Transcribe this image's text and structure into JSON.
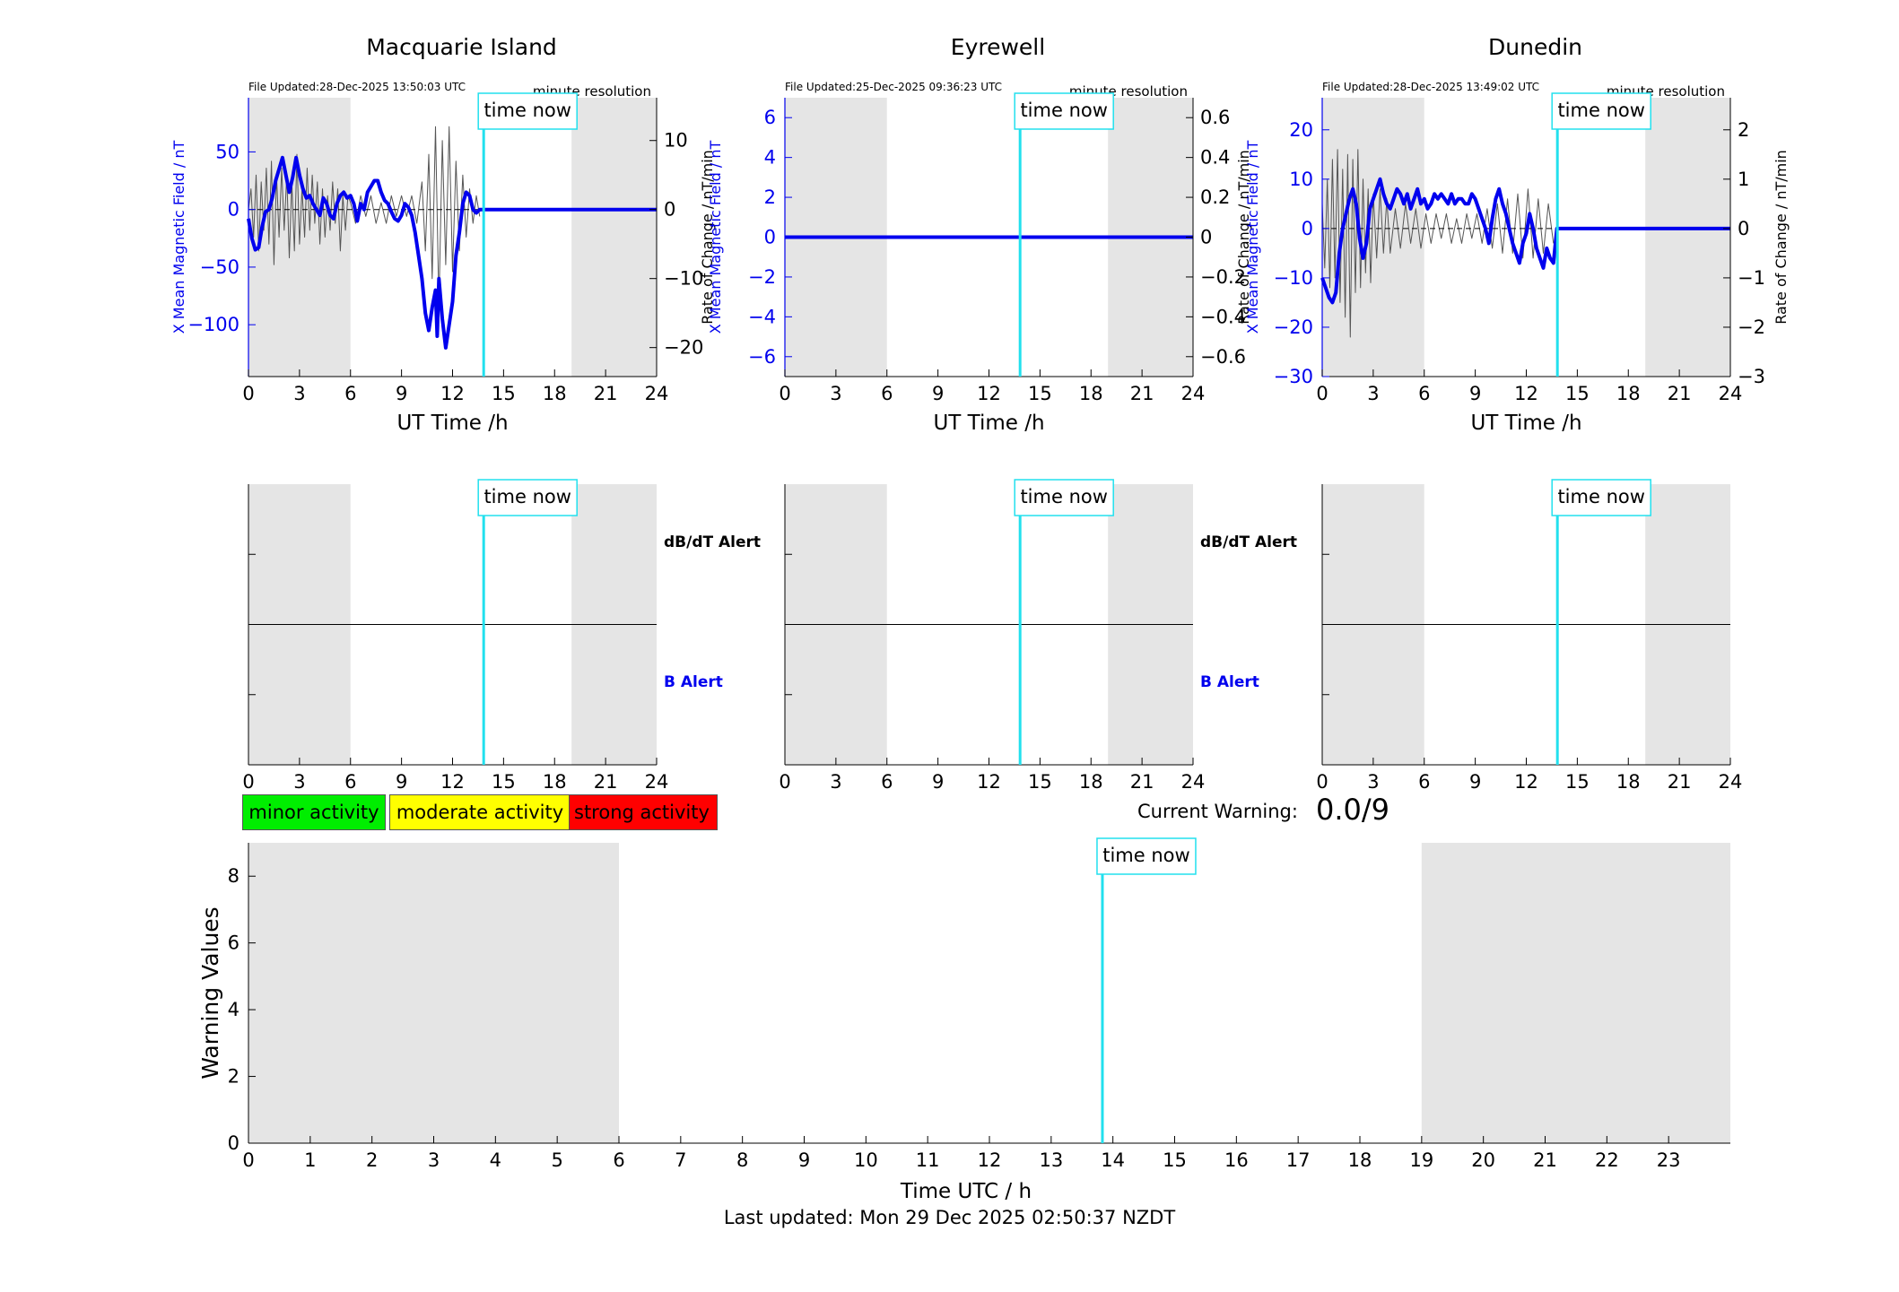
{
  "colors": {
    "shade": "#e5e5e5",
    "field": "#0000ee",
    "rate": "#555555",
    "now_line": "#22e0ee",
    "minor": "#00ee00",
    "moderate": "#ffff00",
    "strong": "#ff0000"
  },
  "time_now_label": "time now",
  "x_label": "UT Time /h",
  "left_y_label": "X Mean Magnetic Field / nT",
  "right_y_label": "Rate of Change / nT/min",
  "resolution_label": "minute resolution",
  "alert_labels": {
    "dbdt": "dB/dT Alert",
    "b": "B Alert"
  },
  "activity_legend": {
    "minor": "minor activity",
    "moderate": "moderate activity",
    "strong": "strong activity"
  },
  "current_warning": {
    "label": "Current Warning:",
    "value": "0.0/9"
  },
  "last_updated": "Last updated: Mon 29 Dec 2025 02:50:37 NZDT",
  "chart_data": [
    {
      "type": "line",
      "title": "Macquarie Island",
      "file_updated": "File Updated:28-Dec-2025 13:50:03 UTC",
      "xlim": [
        0,
        24
      ],
      "xticks": [
        0,
        3,
        6,
        9,
        12,
        15,
        18,
        21,
        24
      ],
      "ylim": [
        -145,
        97
      ],
      "yticks": [
        -100,
        -50,
        0,
        50
      ],
      "y2lim": [
        -24.2,
        16.2
      ],
      "y2ticks": [
        -20,
        -10,
        0,
        10
      ],
      "night_shading_h": [
        [
          0,
          6
        ],
        [
          19,
          24
        ]
      ],
      "time_now_h": 13.83,
      "series": [
        {
          "name": "X Mean Magnetic Field / nT",
          "axis": "left",
          "x": [
            0,
            0.2,
            0.4,
            0.6,
            0.8,
            1.0,
            1.2,
            1.4,
            1.6,
            1.8,
            2.0,
            2.2,
            2.4,
            2.6,
            2.8,
            3.0,
            3.2,
            3.4,
            3.6,
            3.8,
            4.0,
            4.2,
            4.4,
            4.6,
            4.8,
            5.0,
            5.2,
            5.4,
            5.6,
            5.8,
            6.0,
            6.2,
            6.4,
            6.6,
            6.8,
            7.0,
            7.2,
            7.4,
            7.6,
            7.8,
            8.0,
            8.2,
            8.4,
            8.6,
            8.8,
            9.0,
            9.2,
            9.4,
            9.6,
            9.8,
            10.0,
            10.2,
            10.4,
            10.6,
            10.8,
            11.0,
            11.1,
            11.2,
            11.4,
            11.6,
            11.8,
            12.0,
            12.2,
            12.4,
            12.6,
            12.8,
            13.0,
            13.2,
            13.4,
            13.6,
            13.8,
            14.0,
            24.0
          ],
          "values": [
            -8,
            -25,
            -35,
            -33,
            -15,
            -2,
            0,
            10,
            25,
            35,
            45,
            30,
            15,
            28,
            45,
            30,
            18,
            10,
            12,
            5,
            0,
            -5,
            10,
            5,
            -5,
            -8,
            5,
            12,
            15,
            10,
            12,
            5,
            -10,
            5,
            0,
            15,
            20,
            25,
            25,
            15,
            8,
            5,
            -2,
            -8,
            -10,
            -5,
            5,
            2,
            -5,
            -20,
            -40,
            -60,
            -90,
            -105,
            -85,
            -70,
            -110,
            -60,
            -95,
            -120,
            -100,
            -80,
            -40,
            -20,
            5,
            15,
            12,
            0,
            -3,
            0,
            0,
            0,
            0
          ]
        },
        {
          "name": "Rate of Change / nT/min",
          "axis": "right",
          "x": [
            0,
            0.15,
            0.3,
            0.45,
            0.6,
            0.75,
            0.9,
            1.05,
            1.2,
            1.35,
            1.5,
            1.65,
            1.8,
            1.95,
            2.1,
            2.25,
            2.4,
            2.55,
            2.7,
            2.85,
            3.0,
            3.15,
            3.3,
            3.45,
            3.6,
            3.75,
            3.9,
            4.05,
            4.2,
            4.35,
            4.5,
            4.65,
            4.8,
            4.95,
            5.1,
            5.25,
            5.4,
            5.55,
            5.7,
            5.85,
            6.0,
            6.3,
            6.6,
            6.9,
            7.2,
            7.5,
            7.8,
            8.1,
            8.4,
            8.7,
            9.0,
            9.3,
            9.6,
            9.9,
            10.2,
            10.4,
            10.6,
            10.8,
            11.0,
            11.2,
            11.4,
            11.6,
            11.8,
            12.0,
            12.2,
            12.4,
            12.6,
            12.8,
            13.0,
            13.2,
            13.4,
            13.6
          ],
          "values": [
            0,
            3,
            -4,
            5,
            -6,
            4,
            -3,
            6,
            -5,
            7,
            -8,
            5,
            -4,
            6,
            -3,
            5,
            -7,
            4,
            -6,
            8,
            -5,
            3,
            -4,
            6,
            -3,
            5,
            -2,
            4,
            -5,
            3,
            -4,
            2,
            -3,
            4,
            -2,
            3,
            -6,
            2,
            -3,
            2,
            1,
            -2,
            2,
            -1,
            2,
            -2,
            1,
            -2,
            2,
            -1,
            2,
            -1,
            2,
            -2,
            4,
            -6,
            8,
            -10,
            12,
            -14,
            10,
            -8,
            12,
            -9,
            7,
            -6,
            5,
            -4,
            3,
            -2,
            2,
            -1
          ]
        }
      ]
    },
    {
      "type": "line",
      "title": "Eyrewell",
      "file_updated": "File Updated:25-Dec-2025 09:36:23 UTC",
      "xlim": [
        0,
        24
      ],
      "xticks": [
        0,
        3,
        6,
        9,
        12,
        15,
        18,
        21,
        24
      ],
      "ylim": [
        -7,
        7
      ],
      "yticks": [
        -6,
        -4,
        -2,
        0,
        2,
        4,
        6
      ],
      "y2lim": [
        -0.7,
        0.7
      ],
      "y2ticks": [
        -0.6,
        -0.4,
        -0.2,
        0,
        0.2,
        0.4,
        0.6
      ],
      "night_shading_h": [
        [
          0,
          6
        ],
        [
          19,
          24
        ]
      ],
      "time_now_h": 13.83,
      "series": [
        {
          "name": "X Mean Magnetic Field / nT",
          "axis": "left",
          "x": [
            0,
            24
          ],
          "values": [
            0,
            0
          ]
        }
      ]
    },
    {
      "type": "line",
      "title": "Dunedin",
      "file_updated": "File Updated:28-Dec-2025 13:49:02 UTC",
      "xlim": [
        0,
        24
      ],
      "xticks": [
        0,
        3,
        6,
        9,
        12,
        15,
        18,
        21,
        24
      ],
      "ylim": [
        -30,
        26.5
      ],
      "yticks": [
        -30,
        -20,
        -10,
        0,
        10,
        20
      ],
      "y2lim": [
        -3,
        2.65
      ],
      "y2ticks": [
        -3,
        -2,
        -1,
        0,
        1,
        2
      ],
      "night_shading_h": [
        [
          0,
          6
        ],
        [
          19,
          24
        ]
      ],
      "time_now_h": 13.83,
      "series": [
        {
          "name": "X Mean Magnetic Field / nT",
          "axis": "left",
          "x": [
            0,
            0.2,
            0.4,
            0.6,
            0.8,
            1.0,
            1.2,
            1.4,
            1.6,
            1.8,
            2.0,
            2.2,
            2.4,
            2.6,
            2.8,
            3.0,
            3.2,
            3.4,
            3.6,
            3.8,
            4.0,
            4.2,
            4.4,
            4.6,
            4.8,
            5.0,
            5.2,
            5.4,
            5.6,
            5.8,
            6.0,
            6.2,
            6.4,
            6.6,
            6.8,
            7.0,
            7.2,
            7.4,
            7.6,
            7.8,
            8.0,
            8.2,
            8.4,
            8.6,
            8.8,
            9.0,
            9.2,
            9.4,
            9.6,
            9.8,
            10.0,
            10.2,
            10.4,
            10.6,
            10.8,
            11.0,
            11.2,
            11.4,
            11.6,
            11.8,
            12.0,
            12.2,
            12.4,
            12.6,
            12.8,
            13.0,
            13.2,
            13.4,
            13.6,
            13.8,
            24.0
          ],
          "values": [
            -10,
            -12,
            -14,
            -15,
            -13,
            -5,
            0,
            3,
            6,
            8,
            5,
            -2,
            -6,
            -3,
            4,
            6,
            8,
            10,
            7,
            5,
            4,
            6,
            8,
            7,
            5,
            7,
            4,
            6,
            8,
            5,
            6,
            4,
            5,
            7,
            6,
            7,
            6,
            5,
            7,
            5,
            6,
            6,
            5,
            5,
            7,
            6,
            4,
            2,
            0,
            -3,
            2,
            6,
            8,
            5,
            3,
            0,
            -3,
            -5,
            -7,
            -3,
            -1,
            3,
            0,
            -4,
            -6,
            -8,
            -4,
            -6,
            -7,
            0,
            0
          ]
        },
        {
          "name": "Rate of Change / nT/min",
          "axis": "right",
          "x": [
            0,
            0.15,
            0.3,
            0.45,
            0.6,
            0.75,
            0.9,
            1.05,
            1.2,
            1.35,
            1.5,
            1.65,
            1.8,
            1.95,
            2.1,
            2.25,
            2.4,
            2.55,
            2.7,
            2.85,
            3.0,
            3.2,
            3.4,
            3.6,
            3.8,
            4.0,
            4.3,
            4.6,
            4.9,
            5.2,
            5.5,
            5.8,
            6.1,
            6.4,
            6.7,
            7.0,
            7.3,
            7.6,
            7.9,
            8.2,
            8.5,
            8.8,
            9.1,
            9.4,
            9.7,
            10.0,
            10.3,
            10.6,
            10.9,
            11.2,
            11.5,
            11.8,
            12.1,
            12.4,
            12.7,
            13.0,
            13.3,
            13.6
          ],
          "values": [
            0.5,
            -0.8,
            1.0,
            -1.2,
            1.4,
            -1.0,
            1.6,
            -1.5,
            1.2,
            -1.8,
            1.5,
            -2.2,
            1.4,
            -1.3,
            1.6,
            -1.2,
            1.0,
            -0.9,
            0.8,
            -1.1,
            0.7,
            -0.6,
            0.8,
            -0.5,
            0.6,
            -0.5,
            0.4,
            -0.4,
            0.5,
            -0.3,
            0.4,
            -0.4,
            0.3,
            -0.3,
            0.3,
            -0.2,
            0.3,
            -0.3,
            0.2,
            -0.3,
            0.3,
            -0.2,
            0.3,
            -0.3,
            0.4,
            -0.4,
            0.5,
            -0.5,
            0.6,
            -0.5,
            0.7,
            -0.6,
            0.8,
            -0.6,
            0.6,
            -0.5,
            0.5,
            -0.3
          ]
        }
      ]
    },
    {
      "type": "line",
      "title": "",
      "ylabel": "Warning Values",
      "xlabel": "Time UTC / h",
      "xlim": [
        0,
        24
      ],
      "xticks": [
        0,
        1,
        2,
        3,
        4,
        5,
        6,
        7,
        8,
        9,
        10,
        11,
        12,
        13,
        14,
        15,
        16,
        17,
        18,
        19,
        20,
        21,
        22,
        23
      ],
      "ylim": [
        0,
        9
      ],
      "yticks": [
        0,
        2,
        4,
        6,
        8
      ],
      "night_shading_h": [
        [
          0,
          6
        ],
        [
          19,
          24
        ]
      ],
      "time_now_h": 13.83,
      "series": []
    }
  ]
}
